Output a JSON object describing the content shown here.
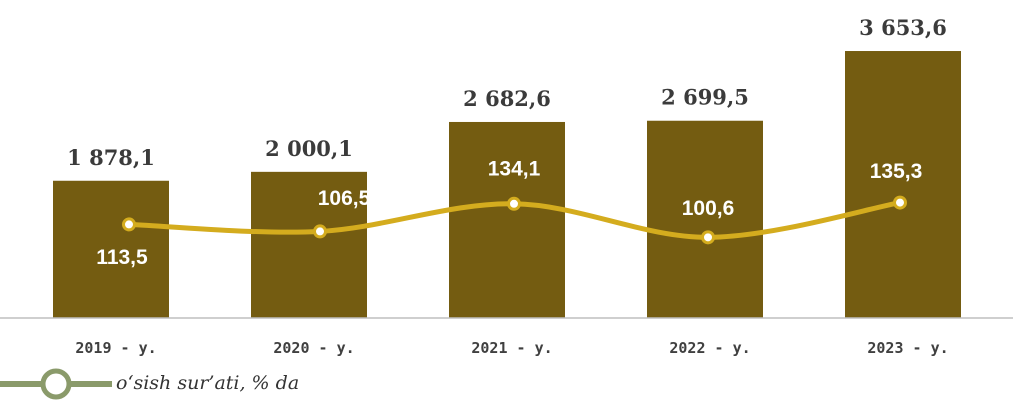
{
  "chart_data": {
    "type": "bar_line",
    "categories": [
      "2019 - y.",
      "2020 - y.",
      "2021 - y.",
      "2022 - y.",
      "2023 - y."
    ],
    "values": [
      1878.1,
      2000.1,
      2682.6,
      2699.5,
      3653.6
    ],
    "value_labels": [
      "1 878,1",
      "2 000,1",
      "2 682,6",
      "2 699,5",
      "3 653,6"
    ],
    "color": "#745c11",
    "ylim": [
      0,
      4000
    ],
    "y2lim": [
      20,
      312
    ],
    "series": [
      {
        "name": "o‘sish sur’ati, % da",
        "color": "#d4ac1e",
        "axis": "y2",
        "values": [
          113.5,
          106.5,
          134.1,
          100.6,
          135.3
        ],
        "value_labels": [
          "113,5",
          "106,5",
          "134,1",
          "100,6",
          "135,3"
        ]
      }
    ],
    "legend": "bottom-left"
  }
}
